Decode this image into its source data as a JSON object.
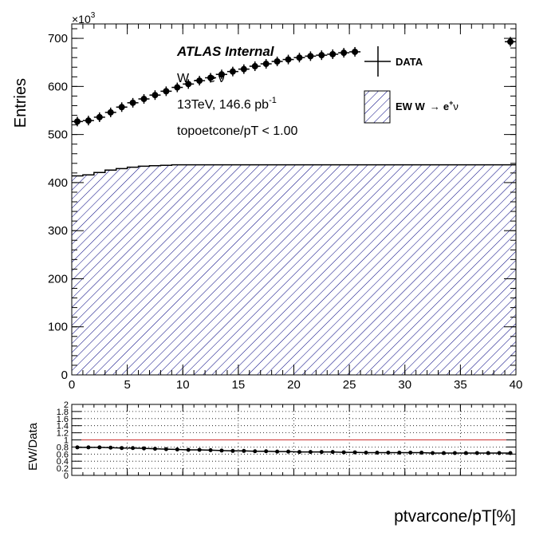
{
  "chart_data": [
    {
      "panel": "main",
      "type": "histogram",
      "xlabel": "ptvarcone/pT[%]",
      "ylabel": "Entries",
      "y_multiplier": "×10",
      "y_multiplier_exp": "3",
      "xlim": [
        0,
        40
      ],
      "ylim": [
        0,
        730
      ],
      "x_ticks": [
        0,
        5,
        10,
        15,
        20,
        25,
        30,
        35,
        40
      ],
      "y_ticks": [
        0,
        100,
        200,
        300,
        400,
        500,
        600,
        700
      ],
      "annotations": {
        "experiment": "ATLAS Internal",
        "process_pre": "W",
        "process_arrow": "→",
        "process_post": "e",
        "process_sup": "-",
        "process_nu": "ν",
        "lumi_main": "13TeV, 146.6 pb",
        "lumi_sup": "-1",
        "cut": "topoetcone/pT < 1.00"
      },
      "legend_position": "top-right",
      "legend": [
        {
          "label": "DATA",
          "style": "data-points"
        },
        {
          "label_pre": "EW W",
          "label_arrow": "→",
          "label_e": "e",
          "label_sup": "+",
          "label_nu": "ν",
          "style": "hatched"
        }
      ],
      "series": [
        {
          "name": "DATA",
          "style": "points",
          "x": [
            0.5,
            1.5,
            2.5,
            3.5,
            4.5,
            5.5,
            6.5,
            7.5,
            8.5,
            9.5,
            10.5,
            11.5,
            12.5,
            13.5,
            14.5,
            15.5,
            16.5,
            17.5,
            18.5,
            19.5,
            20.5,
            21.5,
            22.5,
            23.5,
            24.5,
            25.5,
            39.5
          ],
          "y": [
            527,
            529,
            536,
            546,
            557,
            566,
            574,
            582,
            590,
            598,
            605,
            612,
            618,
            625,
            631,
            636,
            642,
            647,
            652,
            656,
            660,
            663,
            665,
            667,
            670,
            672,
            693
          ]
        },
        {
          "name": "EW W → e+ν",
          "style": "hatched-histogram",
          "color": "#00007f",
          "bin_edges": [
            0,
            1,
            2,
            3,
            4,
            5,
            6,
            7,
            8,
            9,
            10,
            40
          ],
          "values": [
            414,
            416,
            421,
            426,
            429,
            432,
            434,
            435,
            436,
            437,
            437
          ]
        }
      ]
    },
    {
      "panel": "ratio",
      "type": "line",
      "xlabel": "",
      "ylabel": "EW/Data",
      "xlim": [
        0,
        40
      ],
      "ylim": [
        0,
        2
      ],
      "y_ticks": [
        0,
        0.2,
        0.4,
        0.6,
        0.8,
        1,
        1.2,
        1.4,
        1.6,
        1.8,
        2
      ],
      "y_tick_labels": [
        "0",
        "0.2",
        "0.4",
        "0.6",
        "0.8",
        "1",
        "1.2",
        "1.4",
        "1.6",
        "1.8",
        "2"
      ],
      "reference_line": 1,
      "reference_color": "#cc3333",
      "grid": true,
      "series": [
        {
          "name": "ratio",
          "x": [
            0.5,
            1.5,
            2.5,
            3.5,
            4.5,
            5.5,
            6.5,
            7.5,
            8.5,
            9.5,
            10.5,
            11.5,
            12.5,
            13.5,
            14.5,
            15.5,
            16.5,
            17.5,
            18.5,
            19.5,
            20.5,
            21.5,
            22.5,
            23.5,
            24.5,
            25.5,
            26.5,
            27.5,
            28.5,
            29.5,
            30.5,
            31.5,
            32.5,
            33.5,
            34.5,
            35.5,
            36.5,
            37.5,
            38.5,
            39.5
          ],
          "y": [
            0.79,
            0.79,
            0.79,
            0.78,
            0.77,
            0.77,
            0.76,
            0.75,
            0.74,
            0.73,
            0.72,
            0.72,
            0.71,
            0.7,
            0.69,
            0.69,
            0.68,
            0.68,
            0.67,
            0.67,
            0.66,
            0.66,
            0.66,
            0.66,
            0.65,
            0.65,
            0.64,
            0.64,
            0.64,
            0.64,
            0.64,
            0.64,
            0.63,
            0.63,
            0.63,
            0.63,
            0.63,
            0.63,
            0.63,
            0.63
          ]
        }
      ]
    }
  ]
}
